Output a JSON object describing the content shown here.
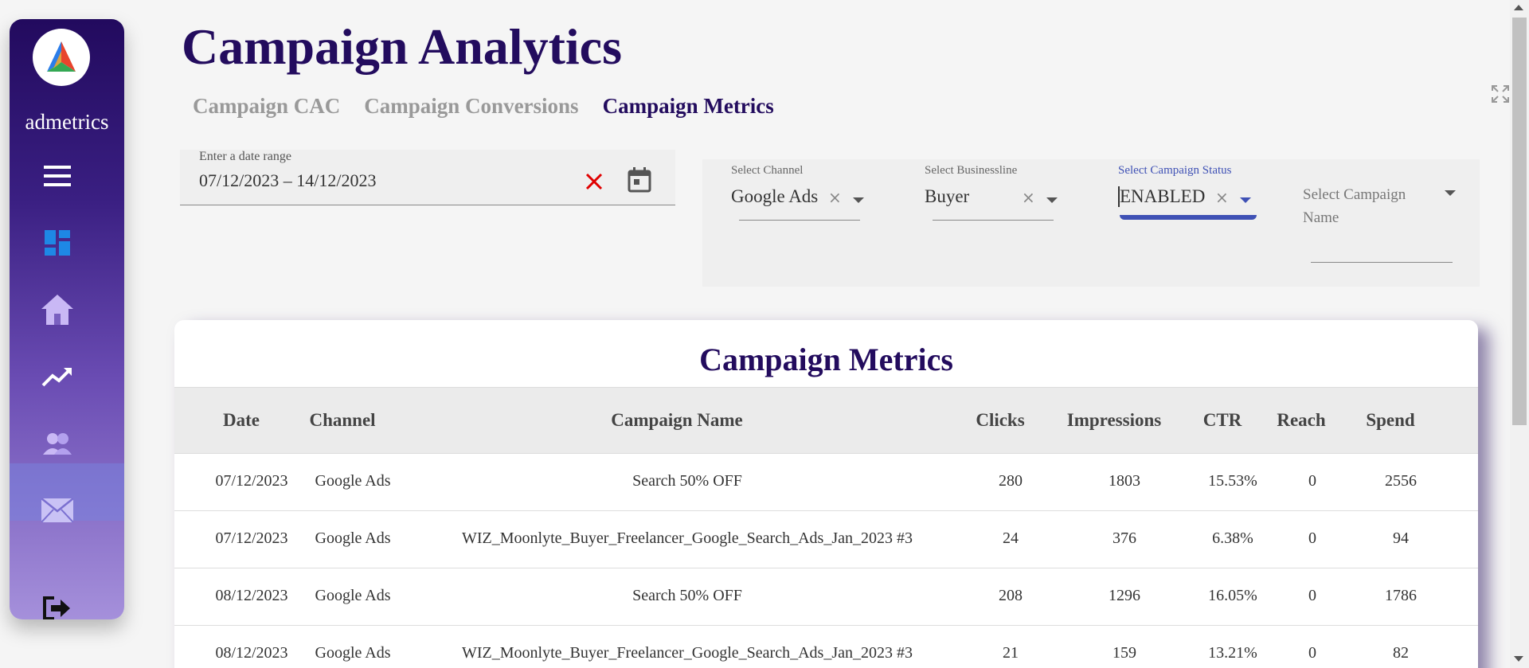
{
  "sidebar": {
    "brand": "admetrics",
    "items": [
      "menu-icon",
      "dashboard-icon",
      "home-icon",
      "trending-icon",
      "users-icon",
      "mail-icon",
      "logout-icon"
    ],
    "active_item": "mail-icon"
  },
  "header": {
    "title": "Campaign Analytics",
    "tabs": [
      {
        "label": "Campaign CAC"
      },
      {
        "label": "Campaign Conversions"
      },
      {
        "label": "Campaign Metrics"
      }
    ],
    "active_tab": "Campaign Metrics"
  },
  "date_range": {
    "label": "Enter a date range",
    "value": "07/12/2023 – 14/12/2023"
  },
  "filters": {
    "channel": {
      "label": "Select Channel",
      "value": "Google Ads"
    },
    "businessline": {
      "label": "Select Businessline",
      "value": "Buyer"
    },
    "status": {
      "label": "Select Campaign Status",
      "value": "ENABLED"
    },
    "campaign_name": {
      "placeholder": "Select Campaign Name"
    }
  },
  "table": {
    "title": "Campaign Metrics",
    "columns": [
      "Date",
      "Channel",
      "Campaign Name",
      "Clicks",
      "Impressions",
      "CTR",
      "Reach",
      "Spend"
    ],
    "rows": [
      [
        "07/12/2023",
        "Google Ads",
        "Search 50% OFF",
        "280",
        "1803",
        "15.53%",
        "0",
        "2556"
      ],
      [
        "07/12/2023",
        "Google Ads",
        "WIZ_Moonlyte_Buyer_Freelancer_Google_Search_Ads_Jan_2023 #3",
        "24",
        "376",
        "6.38%",
        "0",
        "94"
      ],
      [
        "08/12/2023",
        "Google Ads",
        "Search 50% OFF",
        "208",
        "1296",
        "16.05%",
        "0",
        "1786"
      ],
      [
        "08/12/2023",
        "Google Ads",
        "WIZ_Moonlyte_Buyer_Freelancer_Google_Search_Ads_Jan_2023 #3",
        "21",
        "159",
        "13.21%",
        "0",
        "82"
      ]
    ]
  },
  "colors": {
    "primary": "#230c5e",
    "accent": "#3f51b5",
    "clear": "#e00000"
  }
}
